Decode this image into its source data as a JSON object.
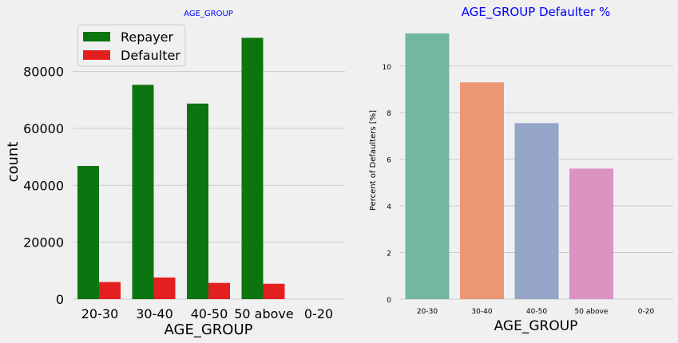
{
  "chart_data": [
    {
      "type": "bar",
      "title": "AGE_GROUP",
      "xlabel": "AGE_GROUP",
      "ylabel": "count",
      "ylim": [
        0,
        95000
      ],
      "yticks": [
        "0",
        "20000",
        "40000",
        "60000",
        "80000"
      ],
      "categories": [
        "20-30",
        "30-40",
        "40-50",
        "50 above",
        "0-20"
      ],
      "series": [
        {
          "name": "Repayer",
          "values": [
            46800,
            75300,
            68700,
            91800,
            0
          ],
          "color": "#0d7510"
        },
        {
          "name": "Defaulter",
          "values": [
            6000,
            7600,
            5700,
            5400,
            0
          ],
          "color": "#e41f1f"
        }
      ],
      "legend": "top-left",
      "grid": "horizontal",
      "title_color": "#0000ff"
    },
    {
      "type": "bar",
      "title": "AGE_GROUP Defaulter %",
      "xlabel": "AGE_GROUP",
      "ylabel": "Percent of Defaulters [%]",
      "ylim": [
        0,
        11.6
      ],
      "yticks": [
        "0",
        "2",
        "4",
        "6",
        "8",
        "10"
      ],
      "categories": [
        "20-30",
        "30-40",
        "40-50",
        "50 above",
        "0-20"
      ],
      "values": [
        11.4,
        9.3,
        7.55,
        5.6,
        0
      ],
      "colors": [
        "#73b6a2",
        "#ec9874",
        "#95a5c7",
        "#dd93c1",
        "#a8d25a"
      ],
      "grid": "horizontal",
      "title_color": "#0000ff"
    }
  ]
}
